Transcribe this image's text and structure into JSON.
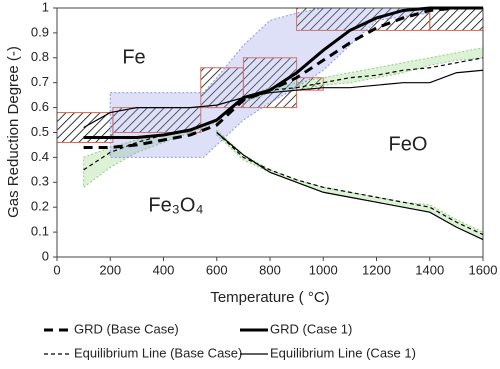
{
  "chart_data": {
    "type": "line",
    "xlabel": "Temperature ( °C)",
    "ylabel": "Gas Reduction Degree (-)",
    "xlim": [
      0,
      1600
    ],
    "xticks": [
      0,
      200,
      400,
      600,
      800,
      1000,
      1200,
      1400,
      1600
    ],
    "ylim": [
      0,
      1
    ],
    "yticks": [
      0,
      0.1,
      0.2,
      0.3,
      0.4,
      0.5,
      0.6,
      0.7,
      0.8,
      0.9,
      1
    ],
    "grid": false,
    "annotations": [
      "Fe",
      "FeO",
      "Fe₃O₄"
    ],
    "x": [
      100,
      200,
      300,
      400,
      500,
      600,
      700,
      800,
      900,
      1000,
      1100,
      1200,
      1300,
      1400,
      1500,
      1600
    ],
    "series": [
      {
        "name": "GRD (Base Case)",
        "color": "#000000",
        "dash": "9 6",
        "width": 3,
        "values": [
          0.44,
          0.44,
          0.45,
          0.47,
          0.49,
          0.53,
          0.63,
          0.67,
          0.72,
          0.79,
          0.86,
          0.92,
          0.96,
          0.99,
          1,
          1
        ]
      },
      {
        "name": "GRD (Case 1)",
        "color": "#000000",
        "dash": "none",
        "width": 3,
        "values": [
          0.48,
          0.48,
          0.48,
          0.49,
          0.51,
          0.55,
          0.64,
          0.67,
          0.74,
          0.83,
          0.91,
          0.96,
          0.99,
          1,
          1,
          1
        ]
      },
      {
        "name": "Equilibrium Line (Base Case)",
        "color": "#000000",
        "dash": "4 3",
        "width": 1.2,
        "values": [
          0.35,
          0.42,
          0.46,
          0.49,
          0.51,
          0.55,
          0.63,
          0.67,
          0.68,
          0.7,
          0.72,
          0.73,
          0.75,
          0.76,
          0.78,
          0.8
        ],
        "lower_values": [
          null,
          null,
          null,
          null,
          null,
          0.5,
          0.4,
          0.35,
          0.31,
          0.28,
          0.26,
          0.24,
          0.22,
          0.2,
          0.14,
          0.09
        ]
      },
      {
        "name": "Equilibrium Line (Case 1)",
        "color": "#000000",
        "dash": "none",
        "width": 1.2,
        "values": [
          0.52,
          0.58,
          0.6,
          0.6,
          0.6,
          0.61,
          0.64,
          0.66,
          0.67,
          0.68,
          0.68,
          0.69,
          0.7,
          0.7,
          0.74,
          0.75
        ],
        "lower_values": [
          null,
          null,
          null,
          null,
          null,
          0.5,
          0.41,
          0.34,
          0.3,
          0.26,
          0.24,
          0.22,
          0.2,
          0.18,
          0.12,
          0.07
        ]
      }
    ],
    "bands": [
      {
        "color": "#8fcf7a",
        "x": [
          100,
          200,
          300,
          400,
          500,
          600
        ],
        "lower": [
          0.28,
          0.36,
          0.42,
          0.46,
          0.5,
          0.54
        ],
        "upper": [
          0.4,
          0.44,
          0.47,
          0.49,
          0.51,
          0.55
        ]
      },
      {
        "color": "#8fcf7a",
        "x": [
          700,
          800,
          900,
          1000,
          1100,
          1200,
          1300,
          1400,
          1500,
          1600
        ],
        "lower": [
          0.62,
          0.66,
          0.67,
          0.69,
          0.7,
          0.72,
          0.74,
          0.77,
          0.79,
          0.8
        ],
        "upper": [
          0.64,
          0.68,
          0.7,
          0.72,
          0.74,
          0.76,
          0.78,
          0.8,
          0.82,
          0.84
        ]
      },
      {
        "color": "#8fcf7a",
        "x": [
          600,
          700,
          800,
          900,
          1000,
          1100,
          1200,
          1300,
          1400,
          1500,
          1600
        ],
        "lower": [
          0.49,
          0.39,
          0.34,
          0.3,
          0.26,
          0.24,
          0.22,
          0.2,
          0.18,
          0.12,
          0.07
        ],
        "upper": [
          0.51,
          0.41,
          0.35,
          0.31,
          0.28,
          0.26,
          0.24,
          0.22,
          0.21,
          0.15,
          0.1
        ]
      },
      {
        "color": "#8f97e0",
        "x": [
          200,
          550,
          600,
          700,
          800,
          900,
          1000,
          1100,
          1200,
          1400
        ],
        "lower": [
          0.4,
          0.4,
          0.45,
          0.55,
          0.62,
          0.68,
          0.75,
          0.85,
          0.95,
          0.98
        ],
        "upper": [
          0.66,
          0.66,
          0.72,
          0.85,
          0.95,
          0.98,
          1,
          1,
          1,
          1
        ]
      }
    ],
    "boxes": [
      {
        "color": "#e0664e",
        "x": [
          0,
          210
        ],
        "y": [
          0.46,
          0.58
        ]
      },
      {
        "color": "#e0664e",
        "x": [
          210,
          540
        ],
        "y": [
          0.5,
          0.6
        ]
      },
      {
        "color": "#e0664e",
        "x": [
          540,
          700
        ],
        "y": [
          0.6,
          0.76
        ]
      },
      {
        "color": "#e0664e",
        "x": [
          700,
          900
        ],
        "y": [
          0.6,
          0.8
        ]
      },
      {
        "color": "#e0664e",
        "x": [
          900,
          1000
        ],
        "y": [
          0.67,
          0.72
        ]
      },
      {
        "color": "#e0664e",
        "x": [
          900,
          1400
        ],
        "y": [
          0.91,
          1
        ]
      },
      {
        "color": "#e0664e",
        "x": [
          1400,
          1600
        ],
        "y": [
          0.91,
          1
        ]
      }
    ]
  }
}
